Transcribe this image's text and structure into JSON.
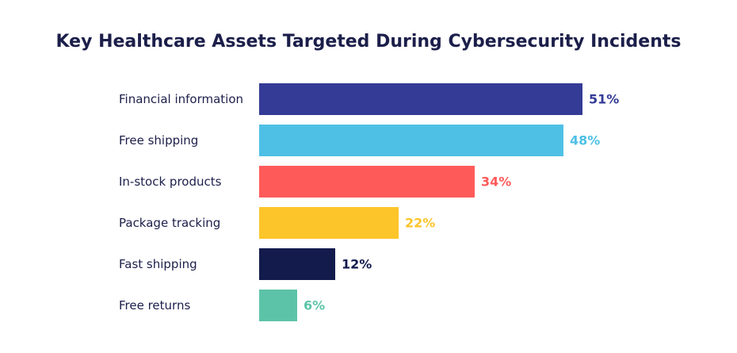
{
  "chart_data": {
    "type": "bar",
    "orientation": "horizontal",
    "title": "Key Healthcare Assets Targeted During Cybersecurity Incidents",
    "categories": [
      "Financial information",
      "Free shipping",
      "In-stock products",
      "Package tracking",
      "Fast shipping",
      "Free returns"
    ],
    "values": [
      51,
      48,
      34,
      22,
      12,
      6
    ],
    "value_labels": [
      "51%",
      "48%",
      "34%",
      "22%",
      "12%",
      "6%"
    ],
    "colors": [
      "#343b96",
      "#4ec0e5",
      "#ff5a5a",
      "#fcc52a",
      "#131b4d",
      "#5dc3a8"
    ],
    "unit": "%",
    "grid": false,
    "legend": "none"
  }
}
